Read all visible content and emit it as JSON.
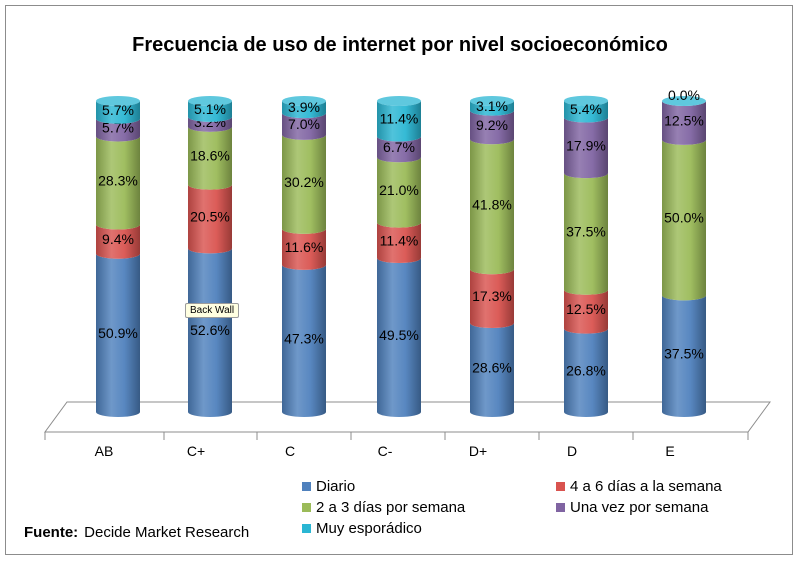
{
  "chart_data": {
    "type": "bar",
    "stacked": true,
    "three_d": true,
    "title": "Frecuencia de uso de internet por nivel socioeconómico",
    "categories": [
      "AB",
      "C+",
      "C",
      "C-",
      "D+",
      "D",
      "E"
    ],
    "series": [
      {
        "name": "Diario",
        "color": "#4f81bd",
        "values": [
          50.9,
          52.6,
          47.3,
          49.5,
          28.6,
          26.8,
          37.5
        ],
        "labels": [
          "50.9%",
          "52.6%",
          "47.3%",
          "49.5%",
          "28.6%",
          "26.8%",
          "37.5%"
        ]
      },
      {
        "name": "4 a 6 días a la semana",
        "color": "#d9534f",
        "values": [
          9.4,
          20.5,
          11.6,
          11.4,
          17.3,
          12.5,
          0
        ],
        "labels": [
          "9.4%",
          "20.5%",
          "11.6%",
          "11.4%",
          "17.3%",
          "12.5%",
          ""
        ]
      },
      {
        "name": "2 a 3 días por semana",
        "color": "#9bbb59",
        "values": [
          28.3,
          18.6,
          30.2,
          21.0,
          41.8,
          37.5,
          50.0
        ],
        "labels": [
          "28.3%",
          "18.6%",
          "30.2%",
          "21.0%",
          "41.8%",
          "37.5%",
          "50.0%"
        ]
      },
      {
        "name": "Una vez por semana",
        "color": "#8064a2",
        "values": [
          5.7,
          3.2,
          7.0,
          6.7,
          9.2,
          17.9,
          12.5
        ],
        "labels": [
          "5.7%",
          "3.2%",
          "7.0%",
          "6.7%",
          "9.2%",
          "17.9%",
          "12.5%"
        ]
      },
      {
        "name": "Muy esporádico",
        "color": "#2ab6d3",
        "values": [
          5.7,
          5.1,
          3.9,
          11.4,
          3.1,
          5.4,
          0.0
        ],
        "labels": [
          "5.7%",
          "5.1%",
          "3.9%",
          "11.4%",
          "3.1%",
          "5.4%",
          "0.0%"
        ]
      }
    ],
    "legend_position": "bottom",
    "grid": false
  },
  "source": {
    "label": "Fuente:",
    "text": "Decide  Market Research"
  },
  "tooltip": {
    "text": "Back Wall"
  }
}
